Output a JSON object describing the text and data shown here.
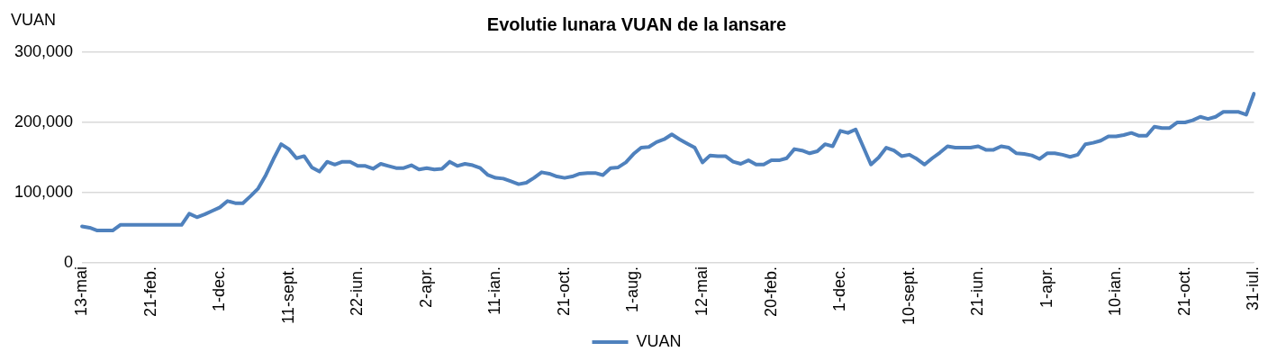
{
  "chart_data": {
    "type": "line",
    "title": "Evolutie lunara VUAN de la lansare",
    "ylabel": "VUAN",
    "categories": [
      "13-mai",
      null,
      null,
      null,
      null,
      null,
      null,
      null,
      null,
      "21-feb.",
      null,
      null,
      null,
      null,
      null,
      null,
      null,
      null,
      "1-dec.",
      null,
      null,
      null,
      null,
      null,
      null,
      null,
      null,
      "11-sept.",
      null,
      null,
      null,
      null,
      null,
      null,
      null,
      null,
      "22-iun.",
      null,
      null,
      null,
      null,
      null,
      null,
      null,
      null,
      "2-apr.",
      null,
      null,
      null,
      null,
      null,
      null,
      null,
      null,
      "11-ian.",
      null,
      null,
      null,
      null,
      null,
      null,
      null,
      null,
      "21-oct.",
      null,
      null,
      null,
      null,
      null,
      null,
      null,
      null,
      "1-aug.",
      null,
      null,
      null,
      null,
      null,
      null,
      null,
      null,
      "12-mai",
      null,
      null,
      null,
      null,
      null,
      null,
      null,
      null,
      "20-feb.",
      null,
      null,
      null,
      null,
      null,
      null,
      null,
      null,
      "1-dec.",
      null,
      null,
      null,
      null,
      null,
      null,
      null,
      null,
      "10-sept.",
      null,
      null,
      null,
      null,
      null,
      null,
      null,
      null,
      "21-iun.",
      null,
      null,
      null,
      null,
      null,
      null,
      null,
      null,
      "1-apr.",
      null,
      null,
      null,
      null,
      null,
      null,
      null,
      null,
      "10-ian.",
      null,
      null,
      null,
      null,
      null,
      null,
      null,
      null,
      "21-oct.",
      null,
      null,
      null,
      null,
      null,
      null,
      null,
      null,
      "31-iul."
    ],
    "series": [
      {
        "name": "VUAN",
        "color": "#4f81bd",
        "values": [
          52000,
          50000,
          46000,
          46000,
          46000,
          54000,
          54000,
          54000,
          54000,
          54000,
          54000,
          54000,
          54000,
          54000,
          70000,
          65000,
          69000,
          74000,
          79000,
          88000,
          85000,
          85000,
          95000,
          106000,
          125000,
          148000,
          169000,
          162000,
          149000,
          152000,
          136000,
          130000,
          144000,
          140000,
          144000,
          144000,
          138000,
          138000,
          134000,
          141000,
          138000,
          135000,
          135000,
          139000,
          133000,
          135000,
          133000,
          134000,
          144000,
          138000,
          141000,
          139000,
          135000,
          125000,
          121000,
          120000,
          116000,
          112000,
          114000,
          121000,
          129000,
          127000,
          123000,
          121000,
          123000,
          127000,
          128000,
          128000,
          125000,
          135000,
          136000,
          143000,
          155000,
          164000,
          165000,
          172000,
          176000,
          183000,
          176000,
          170000,
          164000,
          143000,
          153000,
          152000,
          152000,
          144000,
          141000,
          146000,
          140000,
          140000,
          146000,
          146000,
          149000,
          162000,
          160000,
          156000,
          159000,
          169000,
          166000,
          188000,
          185000,
          190000,
          165000,
          140000,
          150000,
          164000,
          160000,
          152000,
          154000,
          148000,
          140000,
          149000,
          157000,
          166000,
          164000,
          164000,
          164000,
          166000,
          161000,
          161000,
          166000,
          164000,
          156000,
          155000,
          153000,
          148000,
          156000,
          156000,
          154000,
          151000,
          154000,
          169000,
          171000,
          174000,
          180000,
          180000,
          182000,
          185000,
          181000,
          181000,
          194000,
          192000,
          192000,
          200000,
          200000,
          203000,
          208000,
          205000,
          208000,
          215000,
          215000,
          215000,
          211000,
          241000
        ]
      }
    ],
    "ylim": [
      0,
      300000
    ],
    "yticks": [
      0,
      {
        "value": 100000,
        "label": "100,000"
      },
      {
        "value": 200000,
        "label": "200,000"
      },
      {
        "value": 300000,
        "label": "300,000"
      }
    ],
    "grid": "y",
    "legend": "bottom",
    "marker": "none",
    "line_style": "solid"
  }
}
